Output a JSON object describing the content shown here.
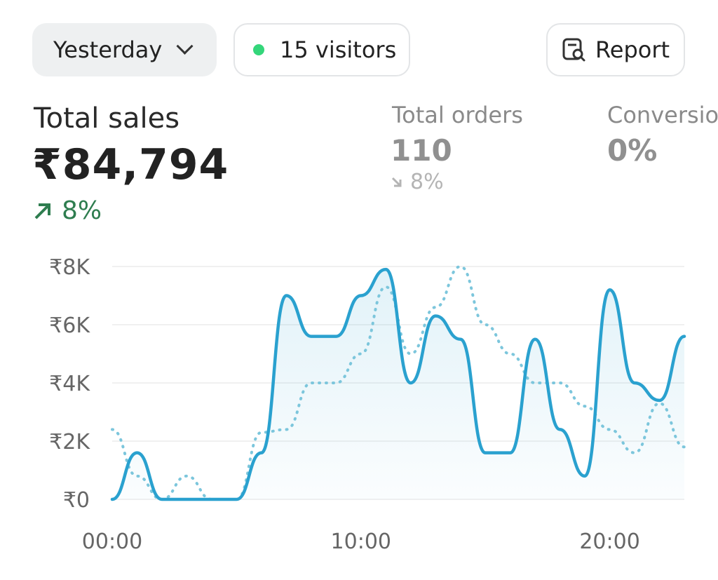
{
  "controls": {
    "period_label": "Yesterday",
    "visitors_label": "15 visitors",
    "report_label": "Report"
  },
  "colors": {
    "line": "#2aa1cf",
    "comparison_line": "#7cc6dc",
    "positive": "#2e7d4f",
    "live_dot": "#34d67a"
  },
  "metrics": {
    "total_sales": {
      "title": "Total sales",
      "value": "₹84,794",
      "change": "8%",
      "direction": "up"
    },
    "total_orders": {
      "title": "Total orders",
      "value": "110",
      "change": "8%",
      "direction": "down"
    },
    "conversion": {
      "title": "Conversion",
      "value": "0%"
    }
  },
  "chart_data": {
    "type": "line",
    "x": [
      0,
      1,
      2,
      3,
      4,
      5,
      6,
      7,
      8,
      9,
      10,
      11,
      12,
      13,
      14,
      15,
      16,
      17,
      18,
      19,
      20,
      21,
      22,
      23
    ],
    "xticks": [
      "00:00",
      "10:00",
      "20:00"
    ],
    "ytick_labels": [
      "₹0",
      "₹2K",
      "₹4K",
      "₹6K",
      "₹8K"
    ],
    "yticks": [
      0,
      2000,
      4000,
      6000,
      8000
    ],
    "ylim": [
      0,
      8000
    ],
    "series": [
      {
        "style": "solid",
        "values": [
          0,
          1600,
          0,
          0,
          0,
          0,
          1600,
          7000,
          5600,
          5600,
          7000,
          7900,
          4000,
          6300,
          5500,
          1600,
          1600,
          5500,
          2400,
          800,
          7200,
          4000,
          3400,
          5600
        ]
      },
      {
        "style": "dotted",
        "values": [
          2400,
          800,
          0,
          800,
          0,
          0,
          2300,
          2400,
          4000,
          4000,
          5000,
          7300,
          5000,
          6600,
          8000,
          6000,
          5000,
          4000,
          4000,
          3200,
          2400,
          1600,
          3300,
          1800
        ]
      }
    ],
    "grid": true
  }
}
